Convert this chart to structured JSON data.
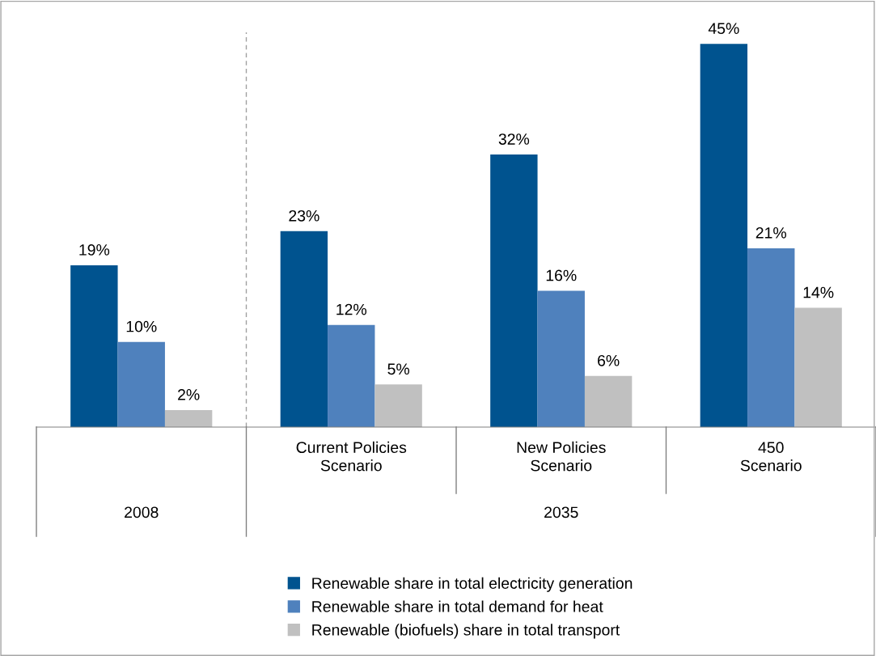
{
  "chart_data": {
    "type": "bar",
    "categories": [
      null,
      "Current Policies\nScenario",
      "New Policies\nScenario",
      "450\nScenario"
    ],
    "series": [
      {
        "name": "Renewable share in total electricity generation",
        "color": "#00538f",
        "values": [
          19,
          23,
          32,
          45
        ],
        "value_labels": [
          "19%",
          "23%",
          "32%",
          "45%"
        ]
      },
      {
        "name": "Renewable share in total demand for heat",
        "color": "#4f81bd",
        "values": [
          10,
          12,
          16,
          21
        ],
        "value_labels": [
          "10%",
          "12%",
          "16%",
          "21%"
        ]
      },
      {
        "name": "Renewable (biofuels) share in total transport",
        "color": "#c0c0c0",
        "values": [
          2,
          5,
          6,
          14
        ],
        "value_labels": [
          "2%",
          "5%",
          "6%",
          "14%"
        ]
      }
    ],
    "annotations": [
      "2008",
      "2035"
    ],
    "legend": "bottom"
  }
}
